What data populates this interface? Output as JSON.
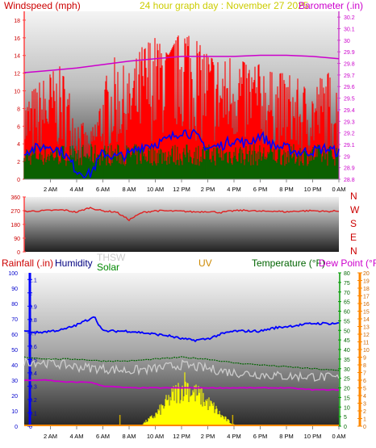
{
  "colors": {
    "wind": "#ff0000",
    "wind_avg": "#0000ff",
    "wind_gust_base": "#006400",
    "barometer": "#cc00cc",
    "direction": "#e02020",
    "rain": "#cc0000",
    "humidity": "#0000ff",
    "thsw": "#cccccc",
    "solar": "#008800",
    "uv": "#cc8800",
    "temperature": "#006400",
    "dewpoint": "#cc00cc",
    "solar_fill": "#ffff00",
    "rain_axis": "#0000ff",
    "uv_axis": "#ff8800",
    "temp_axis": "#009900"
  },
  "chart_data": [
    {
      "type": "line",
      "title": "24 hour graph day : November 27 2025",
      "left_axis_label": "Windspeed (mph)",
      "right_axis_label": "Barometer (.in)",
      "left_ticks": [
        "0",
        "2",
        "4",
        "6",
        "8",
        "10",
        "12",
        "14",
        "16",
        "18"
      ],
      "right_ticks": [
        "28.8",
        "28.9",
        "29",
        "29.1",
        "29.2",
        "29.3",
        "29.4",
        "29.5",
        "29.6",
        "29.7",
        "29.8",
        "29.9",
        "30",
        "30.1",
        "30.2"
      ],
      "x_ticks": [
        "2 AM",
        "4 AM",
        "6 AM",
        "8 AM",
        "10 AM",
        "12 PM",
        "2 PM",
        "4 PM",
        "6 PM",
        "8 PM",
        "10 PM",
        "0 AM"
      ],
      "ylim_left": [
        0,
        19
      ],
      "ylim_right": [
        28.8,
        30.25
      ],
      "series": [
        {
          "name": "Windspeed",
          "axis": "left",
          "hours": [
            0,
            1,
            2,
            3,
            4,
            5,
            6,
            7,
            8,
            9,
            10,
            11,
            12,
            13,
            14,
            15,
            16,
            17,
            18,
            19,
            20,
            21,
            22,
            23,
            24
          ],
          "values": [
            6,
            7,
            8,
            8,
            5,
            3,
            7,
            9,
            8,
            10,
            11,
            12,
            13,
            11,
            10,
            9,
            10,
            9,
            9,
            8,
            8,
            7,
            7,
            8,
            7
          ]
        },
        {
          "name": "Gust",
          "axis": "left",
          "hours": [
            0,
            1,
            2,
            3,
            4,
            5,
            6,
            7,
            8,
            9,
            10,
            11,
            12,
            13,
            14,
            15,
            16,
            17,
            18,
            19,
            20,
            21,
            22,
            23,
            24
          ],
          "values": [
            11,
            12,
            13,
            14,
            9,
            7,
            12,
            14,
            12,
            15,
            16,
            14,
            17,
            16,
            14,
            13,
            14,
            13,
            13,
            12,
            12,
            12,
            11,
            14,
            13
          ]
        },
        {
          "name": "Average Wind",
          "axis": "left",
          "hours": [
            0,
            1,
            2,
            3,
            4,
            5,
            6,
            7,
            8,
            9,
            10,
            11,
            12,
            13,
            14,
            15,
            16,
            17,
            18,
            19,
            20,
            21,
            22,
            23,
            24
          ],
          "values": [
            3.2,
            3.5,
            3.8,
            3.0,
            1.0,
            0.5,
            3.0,
            2.5,
            2.8,
            3.8,
            4.0,
            4.5,
            5.5,
            5.0,
            3.5,
            3.8,
            4.5,
            4.0,
            5.0,
            3.8,
            3.5,
            3.0,
            3.2,
            3.5,
            3.0
          ]
        },
        {
          "name": "Barometer",
          "axis": "right",
          "hours": [
            0,
            2,
            4,
            6,
            8,
            10,
            12,
            14,
            16,
            18,
            20,
            22,
            24
          ],
          "values": [
            29.72,
            29.74,
            29.76,
            29.79,
            29.82,
            29.84,
            29.86,
            29.86,
            29.86,
            29.87,
            29.87,
            29.86,
            29.84
          ]
        }
      ]
    },
    {
      "type": "line",
      "axis_ticks": [
        "0",
        "90",
        "180",
        "270",
        "360"
      ],
      "direction_labels": [
        "N",
        "W",
        "S",
        "E",
        "N"
      ],
      "ylim": [
        0,
        360
      ],
      "x_ticks": [
        "2 AM",
        "4 AM",
        "6 AM",
        "8 AM",
        "10 AM",
        "12 PM",
        "2 PM",
        "4 PM",
        "6 PM",
        "8 PM",
        "10 PM",
        "0 AM"
      ],
      "series": [
        {
          "name": "Wind Direction",
          "hours": [
            0,
            1,
            2,
            3,
            4,
            5,
            6,
            7,
            8,
            9,
            10,
            11,
            12,
            13,
            14,
            15,
            16,
            17,
            18,
            19,
            20,
            21,
            22,
            23,
            24
          ],
          "values": [
            265,
            268,
            272,
            275,
            260,
            290,
            268,
            262,
            210,
            258,
            270,
            268,
            266,
            262,
            265,
            258,
            270,
            272,
            265,
            268,
            262,
            268,
            270,
            265,
            268
          ]
        }
      ]
    },
    {
      "type": "line",
      "legend": [
        "Rainfall (.in)",
        "Humidity",
        "THSW",
        "Solar",
        "UV",
        "Temperature (°F)",
        "Dew Point (°F)"
      ],
      "rain_ticks": [
        "0",
        "0.1",
        "0.2",
        "0.3",
        "0.4",
        "0.5",
        "0.6",
        "0.7",
        "0.8",
        "0.9",
        "1",
        "1.1"
      ],
      "humidity_ticks": [
        "0",
        "10",
        "20",
        "30",
        "40",
        "50",
        "60",
        "70",
        "80",
        "90",
        "100"
      ],
      "temp_ticks": [
        "0",
        "5",
        "10",
        "15",
        "20",
        "25",
        "30",
        "35",
        "40",
        "45",
        "50",
        "55",
        "60",
        "65",
        "70",
        "75",
        "80"
      ],
      "uv_ticks": [
        "0",
        "1",
        "2",
        "3",
        "4",
        "5",
        "6",
        "7",
        "8",
        "9",
        "10",
        "11",
        "12",
        "13",
        "14",
        "15",
        "16",
        "17",
        "18",
        "19",
        "20"
      ],
      "x_ticks": [
        "2 AM",
        "4 AM",
        "6 AM",
        "8 AM",
        "10 AM",
        "12 PM",
        "2 PM",
        "4 PM",
        "6 PM",
        "8 PM",
        "10 PM",
        "0 AM"
      ],
      "ylim_humidity": [
        0,
        100
      ],
      "ylim_temp": [
        0,
        80
      ],
      "series": [
        {
          "name": "Humidity",
          "axis": "humidity",
          "hours": [
            0,
            1,
            2,
            3,
            4,
            5,
            5.3,
            6,
            7,
            8,
            9,
            10,
            11,
            12,
            13,
            14,
            15,
            16,
            17,
            18,
            19,
            20,
            21,
            22,
            23,
            24
          ],
          "values": [
            62,
            61,
            62,
            63,
            66,
            70,
            72,
            62,
            62,
            62,
            61,
            60,
            59,
            57,
            56,
            57,
            60,
            62,
            62,
            62,
            64,
            65,
            66,
            67,
            67,
            67
          ]
        },
        {
          "name": "Temperature",
          "axis": "temp",
          "hours": [
            0,
            2,
            4,
            6,
            8,
            10,
            12,
            14,
            16,
            18,
            20,
            22,
            24
          ],
          "values": [
            36,
            35,
            35,
            34,
            34,
            35,
            36,
            35,
            33,
            32,
            31,
            30,
            29
          ]
        },
        {
          "name": "THSW",
          "axis": "temp",
          "hours": [
            0,
            2,
            4,
            6,
            8,
            10,
            12,
            14,
            16,
            18,
            20,
            22,
            24
          ],
          "values": [
            34,
            33,
            31,
            30,
            29,
            30,
            32,
            30,
            28,
            27,
            26,
            26,
            25
          ]
        },
        {
          "name": "Dew Point",
          "axis": "temp",
          "hours": [
            0,
            2,
            3,
            4,
            5,
            6,
            8,
            10,
            12,
            14,
            16,
            18,
            20,
            22,
            24
          ],
          "values": [
            24,
            24,
            23,
            23,
            23,
            21,
            20,
            20,
            20,
            20,
            20,
            20,
            20,
            19,
            19
          ]
        },
        {
          "name": "Solar",
          "axis": "uv",
          "hours": [
            9,
            10,
            10.5,
            11,
            11.5,
            12,
            12.3,
            12.6,
            13,
            13.5,
            14,
            14.5,
            15,
            15.5,
            16
          ],
          "values": [
            0.3,
            1.5,
            2.5,
            3.5,
            4.5,
            5.0,
            6.0,
            5.0,
            4.5,
            4.0,
            3.2,
            2.5,
            1.5,
            0.8,
            0.2
          ]
        }
      ]
    }
  ]
}
